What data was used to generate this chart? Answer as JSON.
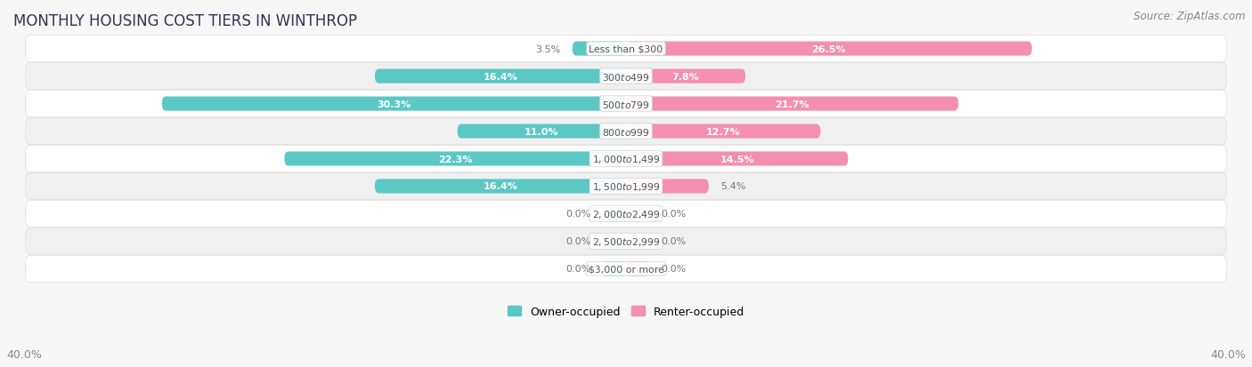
{
  "title": "MONTHLY HOUSING COST TIERS IN WINTHROP",
  "source": "Source: ZipAtlas.com",
  "categories": [
    "Less than $300",
    "$300 to $499",
    "$500 to $799",
    "$800 to $999",
    "$1,000 to $1,499",
    "$1,500 to $1,999",
    "$2,000 to $2,499",
    "$2,500 to $2,999",
    "$3,000 or more"
  ],
  "owner_values": [
    3.5,
    16.4,
    30.3,
    11.0,
    22.3,
    16.4,
    0.0,
    0.0,
    0.0
  ],
  "renter_values": [
    26.5,
    7.8,
    21.7,
    12.7,
    14.5,
    5.4,
    0.0,
    0.0,
    0.0
  ],
  "owner_color": "#5BC8C5",
  "renter_color": "#F48FB1",
  "axis_max": 40.0,
  "axis_label": "40.0%",
  "background_color": "#f7f7f7",
  "row_bg_color": "#ffffff",
  "title_fontsize": 12,
  "source_fontsize": 8.5,
  "bar_height": 0.52,
  "zero_stub": 1.5,
  "label_inside_color": "#ffffff",
  "label_outside_color": "#777777",
  "inside_threshold": 6.0,
  "title_color": "#333355",
  "source_color": "#888888",
  "cat_label_color": "#555555",
  "row_colors": [
    "#ffffff",
    "#f0f0f0"
  ],
  "row_edge_color": "#dddddd"
}
